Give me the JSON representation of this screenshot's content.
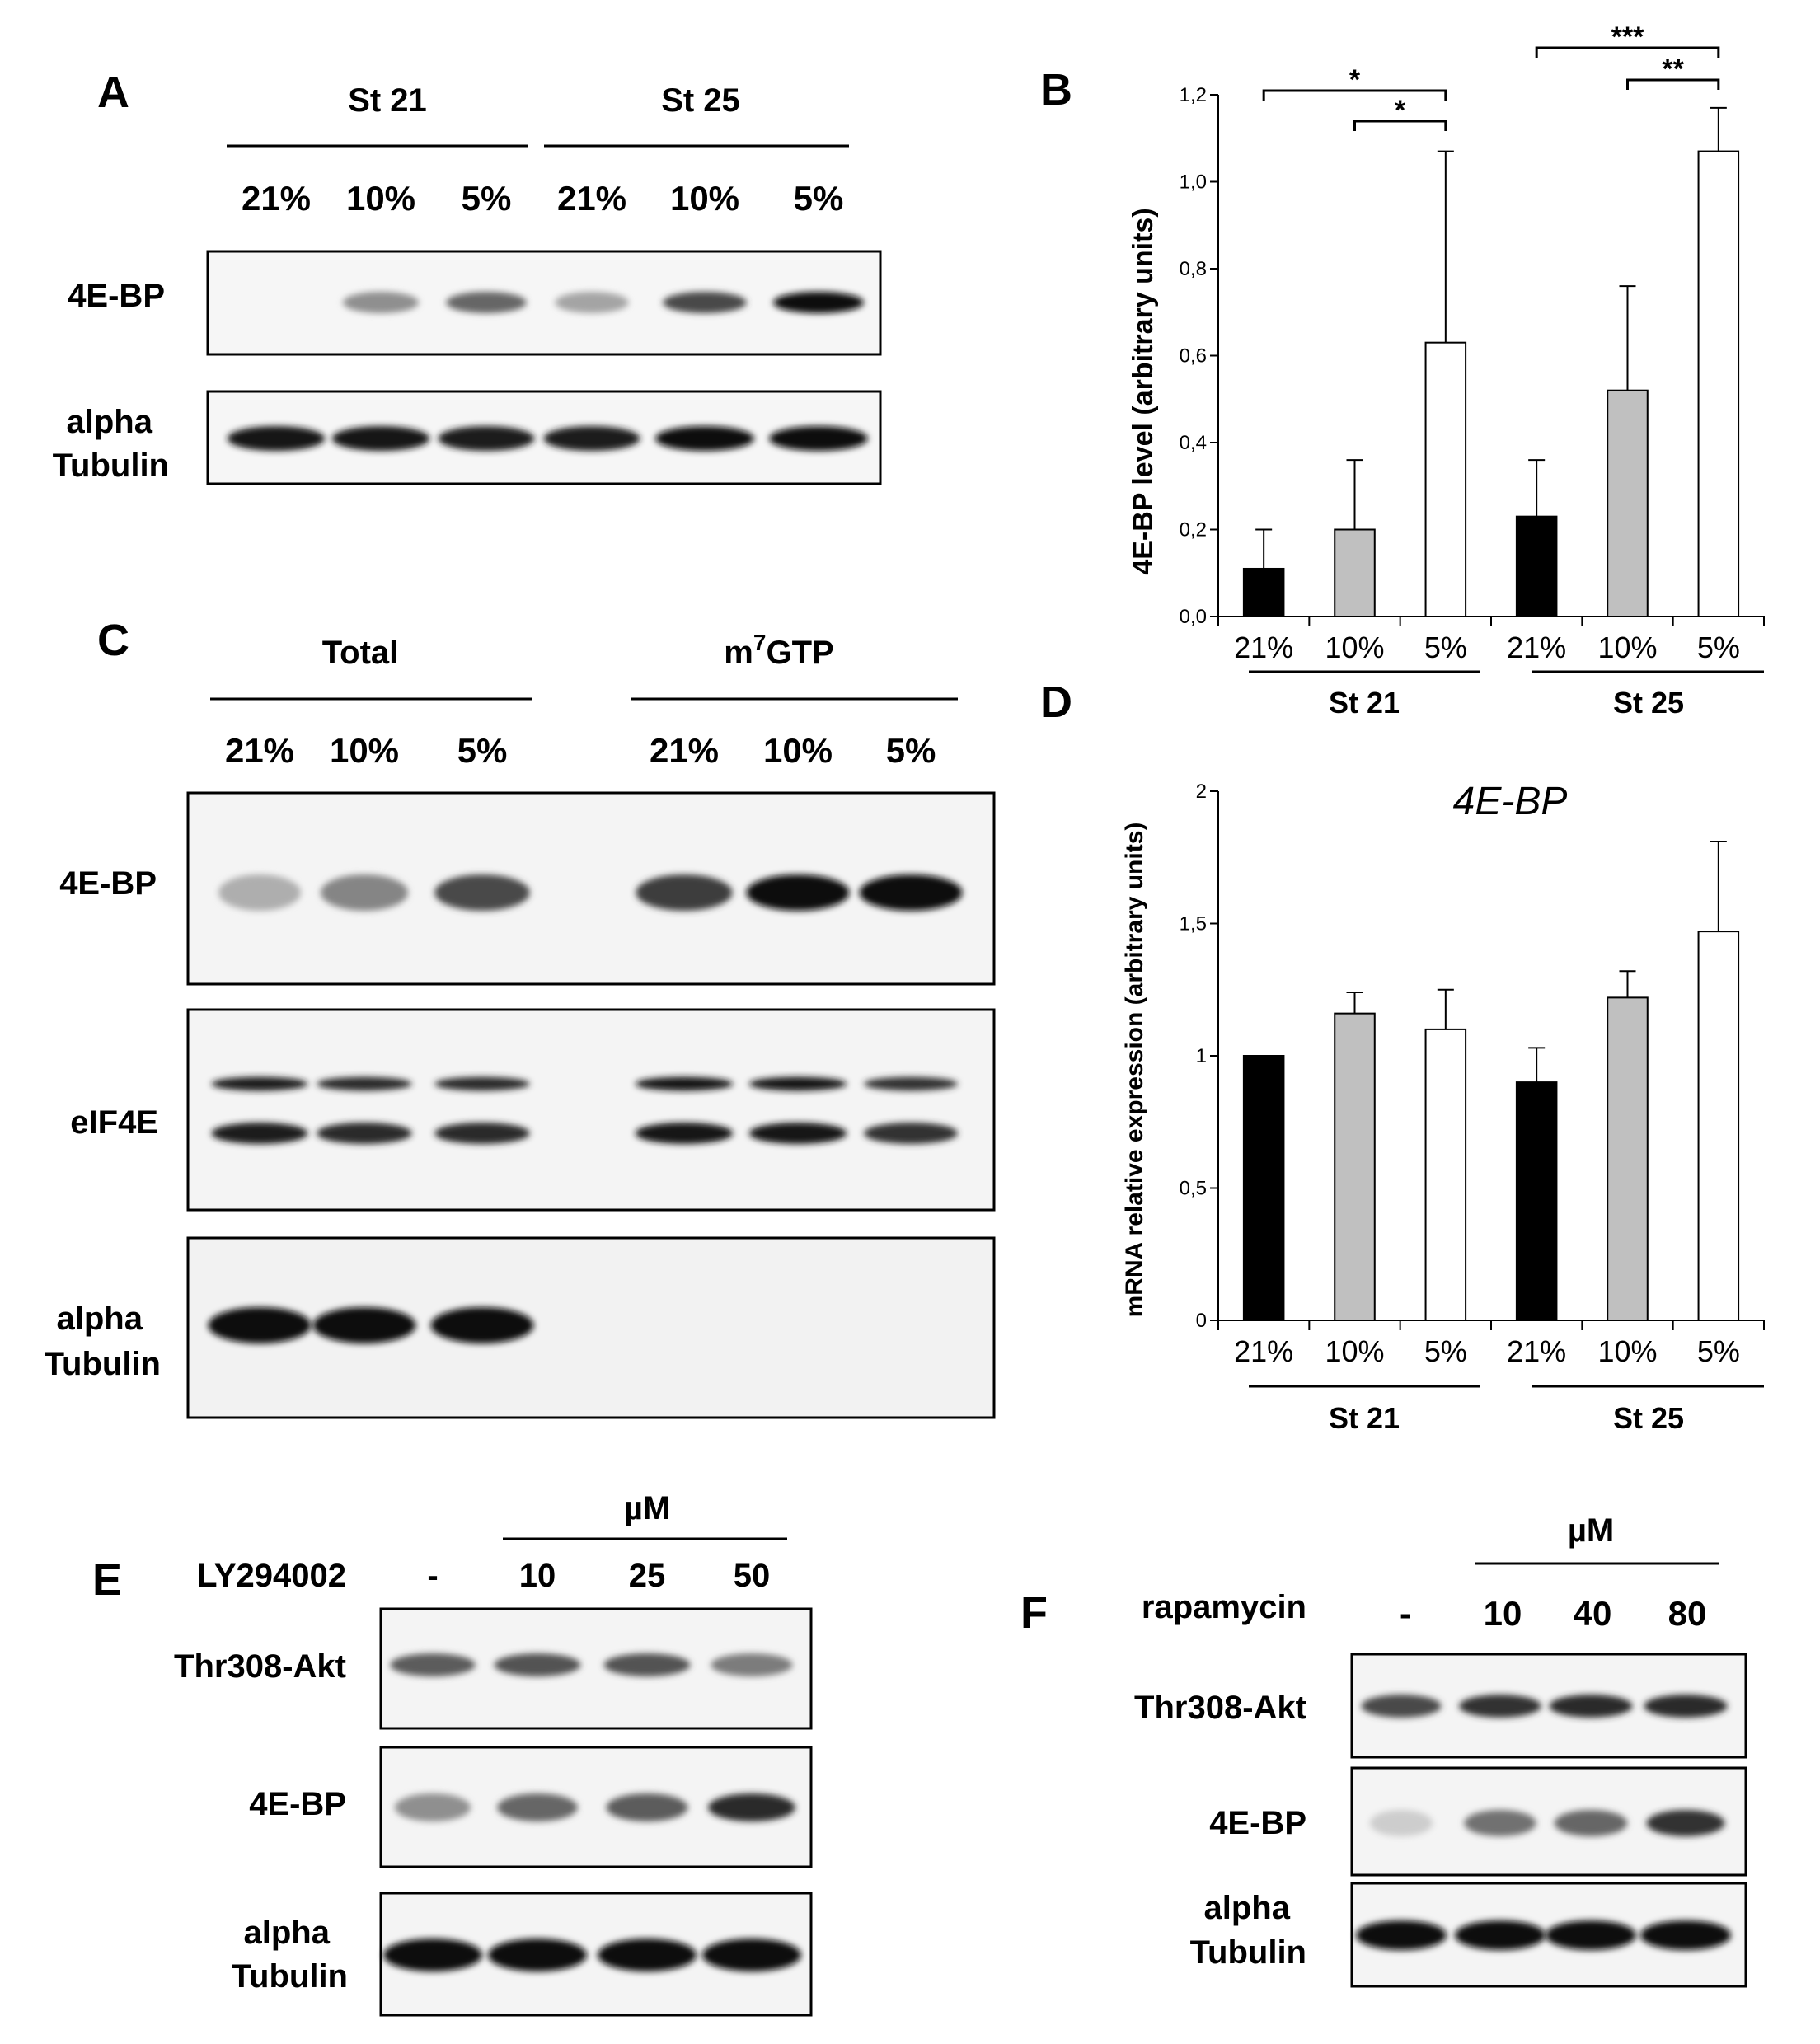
{
  "panels": {
    "A": {
      "letter": "A",
      "groups": [
        "St 21",
        "St 25"
      ],
      "lanes": [
        "21%",
        "10%",
        "5%",
        "21%",
        "10%",
        "5%"
      ],
      "blots": [
        {
          "label": "4E-BP",
          "bands": [
            0.0,
            0.35,
            0.55,
            0.25,
            0.7,
            1.0
          ]
        },
        {
          "label_lines": [
            "alpha",
            "Tubulin"
          ],
          "bands": [
            0.95,
            0.95,
            0.9,
            0.9,
            1.0,
            1.0
          ]
        }
      ]
    },
    "C": {
      "letter": "C",
      "group_total": "Total",
      "group_m7gtp_prefix": "m",
      "group_m7gtp_sup": "7",
      "group_m7gtp_suffix": "GTP",
      "lanes": [
        "21%",
        "10%",
        "5%",
        "21%",
        "10%",
        "5%"
      ],
      "blots": [
        {
          "label": "4E-BP",
          "bands": [
            0.2,
            0.4,
            0.7,
            0.75,
            1.0,
            1.0
          ]
        },
        {
          "label": "eIF4E",
          "bands": [
            0.9,
            0.85,
            0.85,
            0.95,
            0.95,
            0.8
          ]
        },
        {
          "label_lines": [
            "alpha",
            "Tubulin"
          ],
          "bands": [
            1.0,
            1.0,
            1.0,
            0.0,
            0.0,
            0.0
          ]
        }
      ]
    },
    "E": {
      "letter": "E",
      "treatment": "LY294002",
      "unit": "µM",
      "doses": [
        "-",
        "10",
        "25",
        "50"
      ],
      "blots": [
        {
          "label": "Thr308-Akt",
          "bands": [
            0.6,
            0.65,
            0.65,
            0.45
          ]
        },
        {
          "label": "4E-BP",
          "bands": [
            0.35,
            0.55,
            0.6,
            0.85
          ]
        },
        {
          "label_lines": [
            "alpha",
            "Tubulin"
          ],
          "bands": [
            1.0,
            1.0,
            1.0,
            1.0
          ]
        }
      ]
    },
    "F": {
      "letter": "F",
      "treatment": "rapamycin",
      "unit": "µM",
      "doses": [
        "-",
        "10",
        "40",
        "80"
      ],
      "blots": [
        {
          "label": "Thr308-Akt",
          "bands": [
            0.7,
            0.8,
            0.85,
            0.85
          ]
        },
        {
          "label": "4E-BP",
          "bands": [
            0.05,
            0.5,
            0.55,
            0.8
          ]
        },
        {
          "label_lines": [
            "alpha",
            "Tubulin"
          ],
          "bands": [
            1.0,
            1.0,
            1.0,
            1.0
          ]
        }
      ]
    }
  },
  "chart_data": [
    {
      "panel": "B",
      "type": "bar",
      "ylabel": "4E-BP level (arbitrary units)",
      "ylim": [
        0,
        1.2
      ],
      "yticks": [
        "0,0",
        "0,2",
        "0,4",
        "0,6",
        "0,8",
        "1,0",
        "1,2"
      ],
      "categories": [
        "21%",
        "10%",
        "5%",
        "21%",
        "10%",
        "5%"
      ],
      "groups": [
        "St 21",
        "St 25"
      ],
      "values": [
        0.11,
        0.2,
        0.63,
        0.23,
        0.52,
        1.07
      ],
      "errors": [
        0.09,
        0.16,
        0.44,
        0.13,
        0.24,
        0.1
      ],
      "colors": [
        "#000000",
        "#c0c0c0",
        "#ffffff",
        "#000000",
        "#c0c0c0",
        "#ffffff"
      ],
      "significance": [
        {
          "from": 0,
          "to": 2,
          "label": "*"
        },
        {
          "from": 1,
          "to": 2,
          "label": "*"
        },
        {
          "from": 3,
          "to": 5,
          "label": "***"
        },
        {
          "from": 4,
          "to": 5,
          "label": "**"
        }
      ]
    },
    {
      "panel": "D",
      "type": "bar",
      "title": "4E-BP",
      "ylabel": "mRNA relative expression (arbitrary units)",
      "ylim": [
        0,
        2
      ],
      "yticks": [
        "0",
        "0,5",
        "1",
        "1,5",
        "2"
      ],
      "categories": [
        "21%",
        "10%",
        "5%",
        "21%",
        "10%",
        "5%"
      ],
      "groups": [
        "St 21",
        "St 25"
      ],
      "values": [
        1.0,
        1.16,
        1.1,
        0.9,
        1.22,
        1.47
      ],
      "errors": [
        0.0,
        0.08,
        0.15,
        0.13,
        0.1,
        0.34
      ],
      "colors": [
        "#000000",
        "#c0c0c0",
        "#ffffff",
        "#000000",
        "#c0c0c0",
        "#ffffff"
      ]
    }
  ],
  "letters": {
    "B": "B",
    "D": "D"
  }
}
